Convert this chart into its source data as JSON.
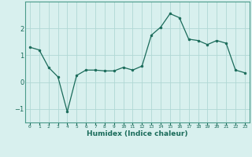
{
  "x": [
    0,
    1,
    2,
    3,
    4,
    5,
    6,
    7,
    8,
    9,
    10,
    11,
    12,
    13,
    14,
    15,
    16,
    17,
    18,
    19,
    20,
    21,
    22,
    23
  ],
  "y": [
    1.3,
    1.2,
    0.55,
    0.2,
    -1.1,
    0.25,
    0.45,
    0.45,
    0.42,
    0.42,
    0.55,
    0.45,
    0.6,
    1.75,
    2.05,
    2.55,
    2.4,
    1.6,
    1.55,
    1.4,
    1.55,
    1.45,
    0.45,
    0.35
  ],
  "line_color": "#1a6b5a",
  "marker_color": "#1a6b5a",
  "bg_color": "#d8f0ee",
  "grid_color": "#b0d8d4",
  "xlabel": "Humidex (Indice chaleur)",
  "xlabel_color": "#1a6b5a",
  "tick_color": "#1a6b5a",
  "spine_color": "#4a9a8a",
  "ylim": [
    -1.5,
    3.0
  ],
  "yticks": [
    -1,
    0,
    1,
    2
  ],
  "xlim": [
    -0.5,
    23.5
  ],
  "xtick_labels": [
    "0",
    "1",
    "2",
    "3",
    "4",
    "5",
    "6",
    "7",
    "8",
    "9",
    "10",
    "11",
    "12",
    "13",
    "14",
    "15",
    "16",
    "17",
    "18",
    "19",
    "20",
    "21",
    "22",
    "23"
  ]
}
